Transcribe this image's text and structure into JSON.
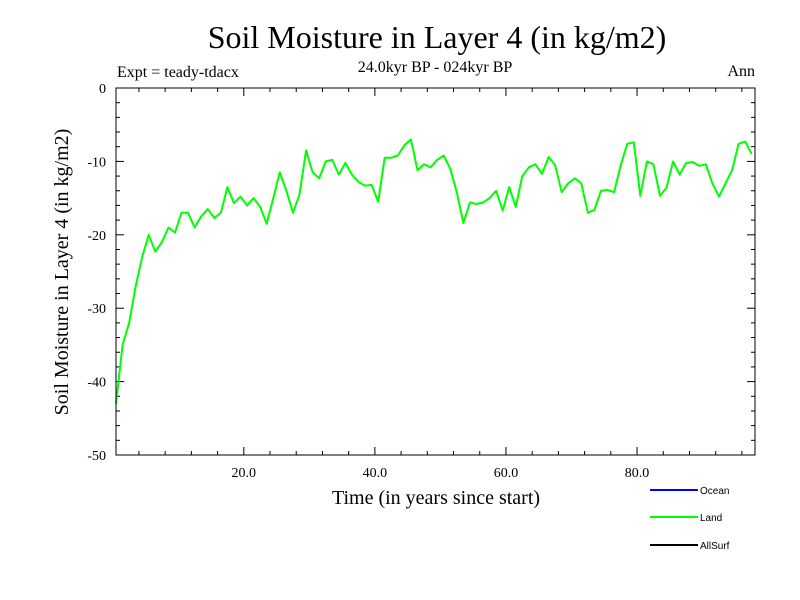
{
  "chart_data": {
    "type": "line",
    "title": "Soil Moisture in Layer 4 (in kg/m2)",
    "subtitle": "24.0kyr BP - 024kyr BP",
    "experiment_label": "Expt = teady-tdacx",
    "season_label": "Ann",
    "xlabel": "Time (in years since start)",
    "ylabel": "Soil Moisture in Layer 4 (in kg/m2)",
    "xlim": [
      0.5,
      98
    ],
    "ylim": [
      -50,
      0
    ],
    "x_ticks": [
      20,
      40,
      60,
      80
    ],
    "x_tick_labels": [
      "20.0",
      "40.0",
      "60.0",
      "80.0"
    ],
    "y_ticks": [
      0,
      -10,
      -20,
      -30,
      -40,
      -50
    ],
    "y_tick_labels": [
      "0",
      "-10",
      "-20",
      "-30",
      "-40",
      "-50"
    ],
    "grid": false,
    "legend_position": "bottom-right",
    "series": [
      {
        "name": "Ocean",
        "color": "#0000ff",
        "values": []
      },
      {
        "name": "Land",
        "color": "#00ff00",
        "x_start": 0.5,
        "x_step": 1,
        "values": [
          -43,
          -35,
          -32,
          -27,
          -23,
          -20,
          -22.3,
          -21,
          -19,
          -19.7,
          -17,
          -17,
          -19,
          -17.5,
          -16.5,
          -17.7,
          -17,
          -13.5,
          -15.7,
          -14.8,
          -16,
          -15,
          -16.2,
          -18.5,
          -15,
          -11.5,
          -14,
          -17,
          -14.5,
          -8.5,
          -11.5,
          -12.3,
          -10,
          -9.8,
          -11.8,
          -10.2,
          -11.8,
          -12.8,
          -13.3,
          -13.2,
          -15.5,
          -9.5,
          -9.5,
          -9.2,
          -7.8,
          -7,
          -11.2,
          -10.4,
          -10.8,
          -9.8,
          -9.2,
          -11,
          -14.2,
          -18.4,
          -15.6,
          -15.8,
          -15.6,
          -15,
          -14,
          -16.7,
          -13.5,
          -16.2,
          -12,
          -10.8,
          -10.4,
          -11.7,
          -9.4,
          -10.5,
          -14.2,
          -13,
          -12.3,
          -13,
          -17,
          -16.6,
          -14,
          -13.9,
          -14.2,
          -10.6,
          -7.6,
          -7.4,
          -14.7,
          -10,
          -10.4,
          -14.7,
          -13.6,
          -10,
          -11.8,
          -10.2,
          -10.1,
          -10.6,
          -10.4,
          -13,
          -14.8,
          -13,
          -11.2,
          -7.6,
          -7.3,
          -9
        ]
      },
      {
        "name": "AllSurf",
        "color": "#000000",
        "values": []
      }
    ]
  }
}
